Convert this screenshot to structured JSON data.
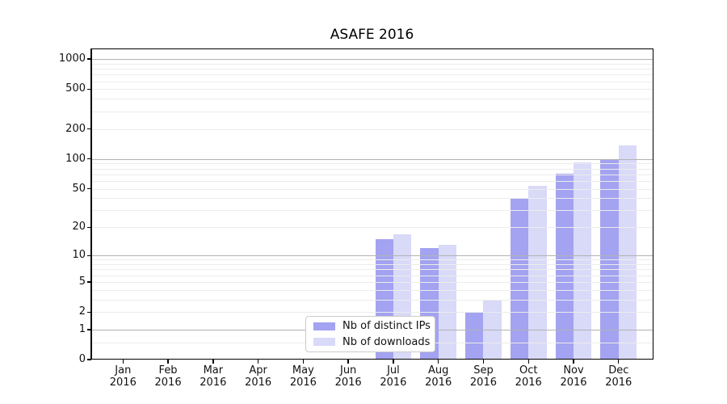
{
  "chart_data": {
    "type": "bar",
    "title": "ASAFE 2016",
    "categories": [
      "Jan",
      "Feb",
      "Mar",
      "Apr",
      "May",
      "Jun",
      "Jul",
      "Aug",
      "Sep",
      "Oct",
      "Nov",
      "Dec"
    ],
    "year_label": "2016",
    "series": [
      {
        "name": "Nb of distinct IPs",
        "color": "#a3a3f1",
        "values": [
          0,
          0,
          0,
          0,
          0,
          0,
          15,
          12,
          2,
          40,
          71,
          100
        ]
      },
      {
        "name": "Nb of downloads",
        "color": "#d9d9f8",
        "values": [
          0,
          0,
          0,
          0,
          0,
          0,
          17,
          13,
          3,
          54,
          93,
          137
        ]
      }
    ],
    "yscale": "symlog ln(1+v)",
    "ylim": [
      0,
      1280
    ],
    "yticks": [
      0,
      1,
      2,
      5,
      10,
      20,
      50,
      100,
      200,
      500,
      1000
    ],
    "major_gridlines": [
      1,
      10,
      100,
      1000
    ],
    "minor_gridlines": [
      0.5,
      2,
      3,
      4,
      5,
      6,
      7,
      8,
      9,
      20,
      30,
      40,
      50,
      60,
      70,
      80,
      90,
      200,
      300,
      400,
      500,
      600,
      700,
      800,
      900
    ],
    "grid": true,
    "legend_position": "inside bottom-center",
    "colors": {
      "major_grid": "#b2b2b2",
      "minor_grid": "#ececec",
      "axis": "#000000",
      "background": "#ffffff"
    }
  }
}
